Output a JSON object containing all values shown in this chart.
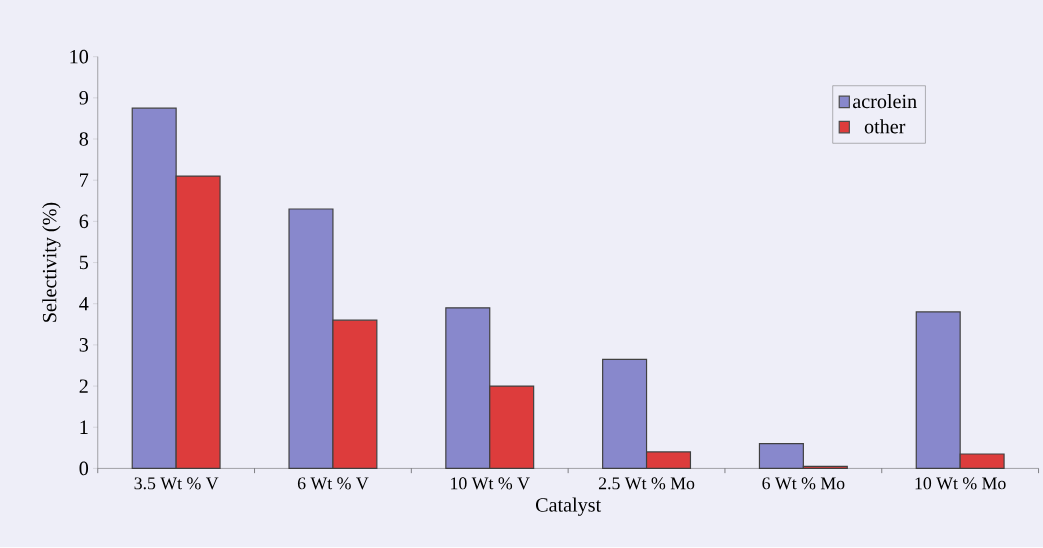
{
  "chart_data": {
    "type": "bar",
    "xlabel": "Catalyst",
    "ylabel": "Selectivity (%)",
    "categories": [
      "3.5 Wt % V",
      "6 Wt % V",
      "10 Wt % V",
      "2.5 Wt % Mo",
      "6 Wt % Mo",
      "10 Wt % Mo"
    ],
    "series": [
      {
        "name": "acrolein",
        "color": "#8888cc",
        "values": [
          8.75,
          6.3,
          3.9,
          2.65,
          0.6,
          3.8
        ]
      },
      {
        "name": "other",
        "color": "#dd3c3c",
        "values": [
          7.1,
          3.6,
          2.0,
          0.4,
          0.05,
          0.35
        ]
      }
    ],
    "ylim": [
      0,
      10
    ],
    "yticks": [
      0,
      1,
      2,
      3,
      4,
      5,
      6,
      7,
      8,
      9,
      10
    ],
    "grid": false,
    "legend": "top right"
  }
}
